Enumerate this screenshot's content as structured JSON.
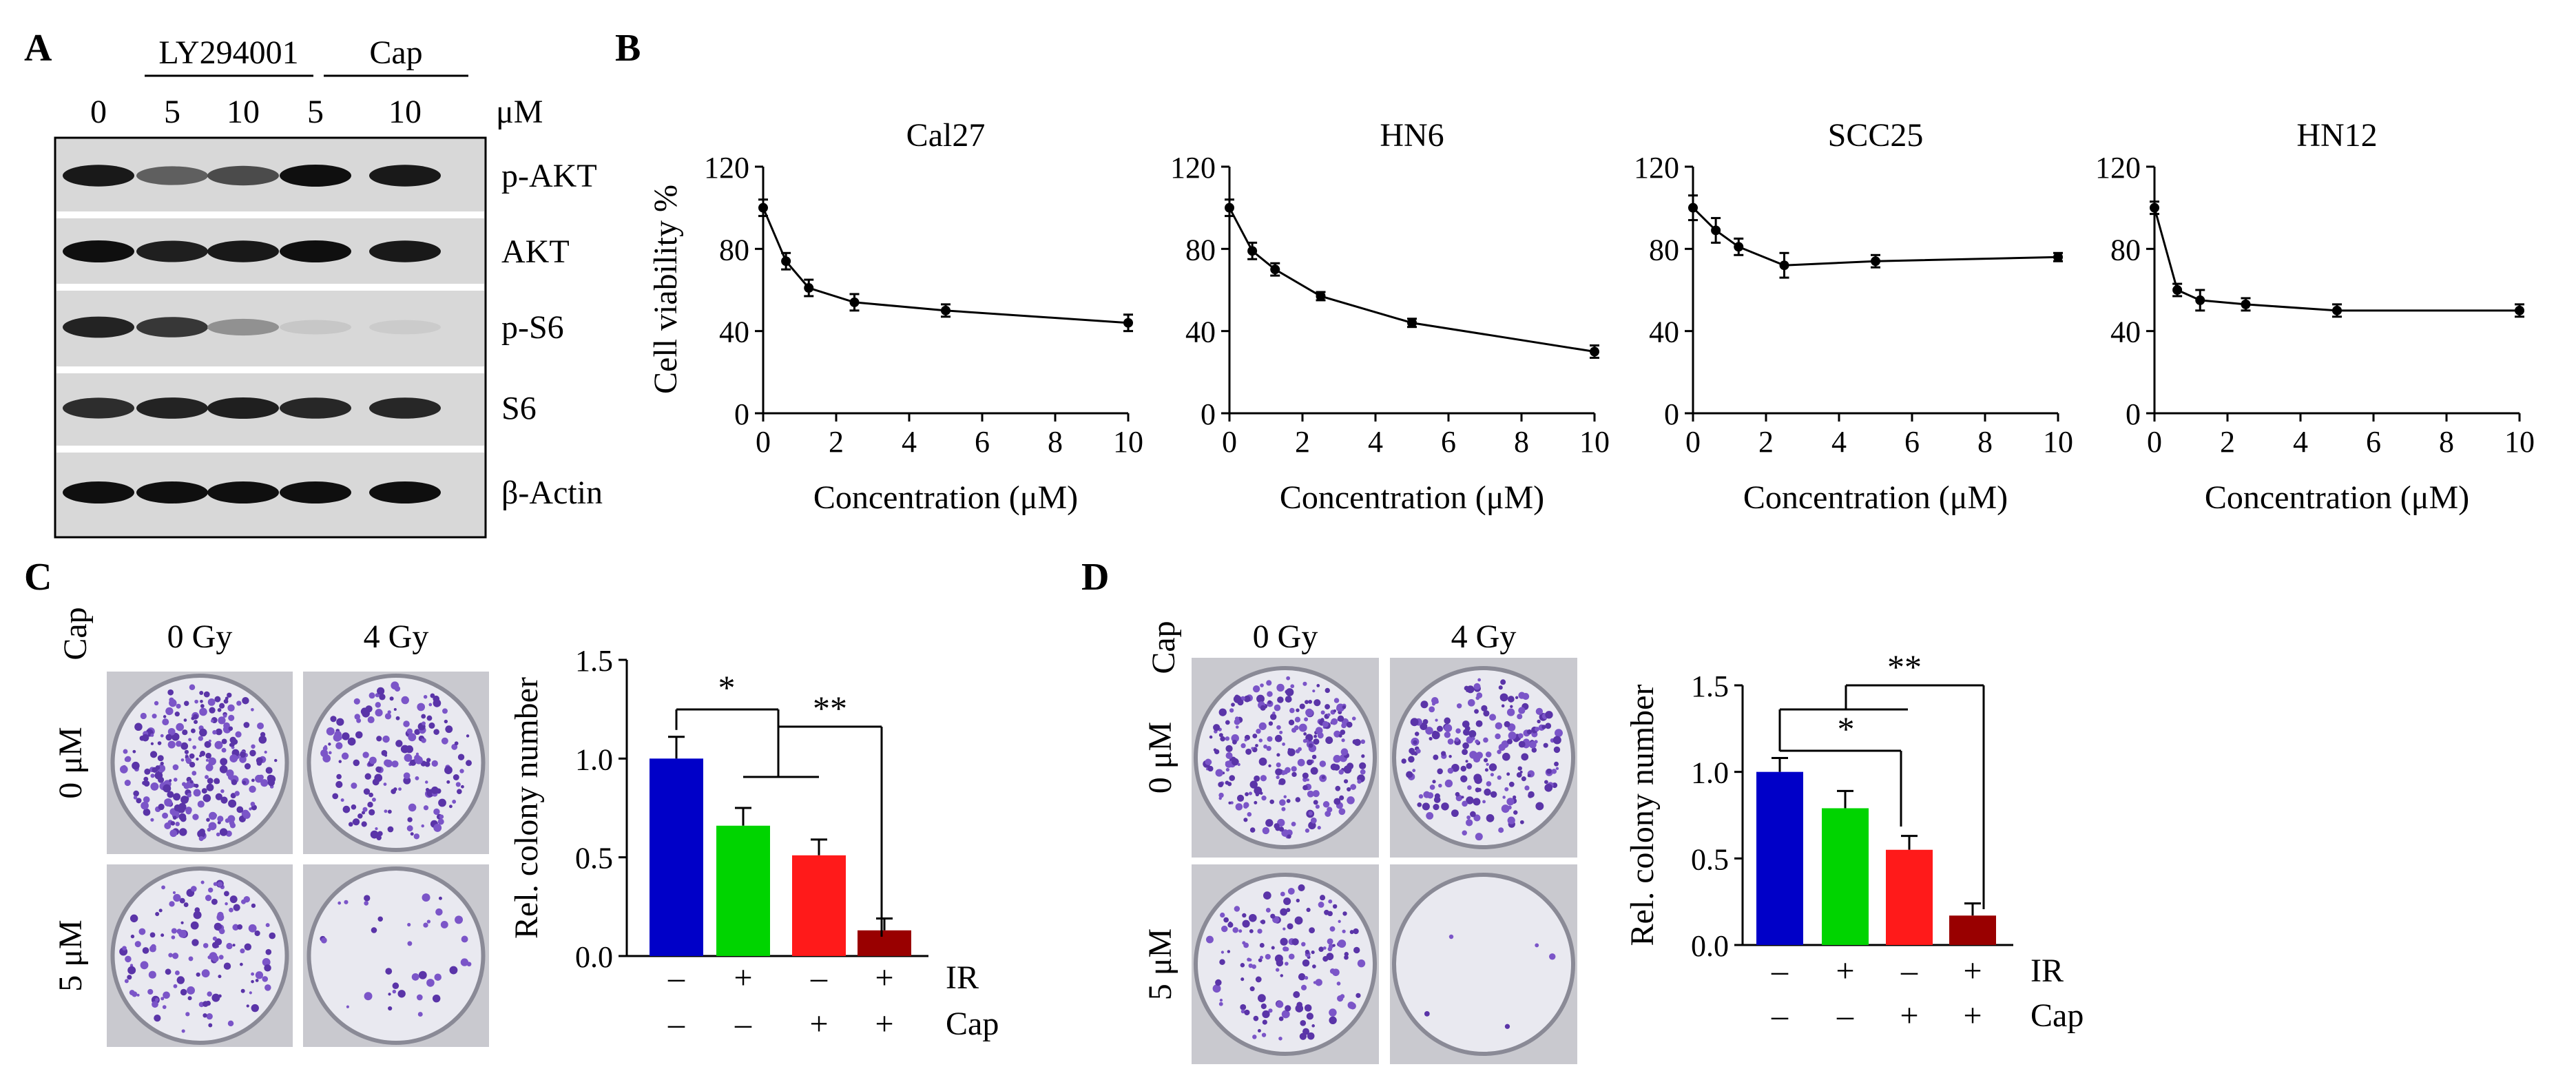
{
  "panel_labels": {
    "a": "A",
    "b": "B",
    "c": "C",
    "d": "D"
  },
  "panel_a": {
    "group_ly": "LY294001",
    "group_cap": "Cap",
    "unit": "μM",
    "lanes": [
      "0",
      "5",
      "10",
      "5",
      "10"
    ],
    "blots": [
      "p-AKT",
      "AKT",
      "p-S6",
      "S6",
      "β-Actin"
    ],
    "band_intensity": [
      [
        0.95,
        0.6,
        0.7,
        1.0,
        0.95
      ],
      [
        1.0,
        0.92,
        0.95,
        1.0,
        0.95
      ],
      [
        0.9,
        0.8,
        0.35,
        0.08,
        0.06
      ],
      [
        0.85,
        0.9,
        0.92,
        0.88,
        0.88
      ],
      [
        1.0,
        1.0,
        1.0,
        1.0,
        1.0
      ]
    ]
  },
  "panel_c_images": {
    "cap_label": "Cap",
    "columns": [
      "0 Gy",
      "4 Gy"
    ],
    "rows": [
      "0 μM",
      "5 μM"
    ],
    "colony_density": [
      [
        1.0,
        0.65
      ],
      [
        0.5,
        0.14
      ]
    ]
  },
  "panel_d_images": {
    "cap_label": "Cap",
    "columns": [
      "0 Gy",
      "4 Gy"
    ],
    "rows": [
      "0 μM",
      "5 μM"
    ],
    "colony_density": [
      [
        1.0,
        0.8
      ],
      [
        0.55,
        0.02
      ]
    ]
  },
  "chart_data": [
    {
      "type": "line",
      "panel": "B",
      "title": "Cal27",
      "xlabel": "Concentration (μM)",
      "ylabel": "Cell viability %",
      "x": [
        0,
        0.625,
        1.25,
        2.5,
        5,
        10
      ],
      "y": [
        100,
        74,
        61,
        54,
        50,
        44
      ],
      "err": [
        4,
        4,
        4,
        4,
        3,
        4
      ],
      "xlim": [
        0,
        10
      ],
      "ylim": [
        0,
        120
      ],
      "xticks": [
        0,
        2,
        4,
        6,
        8,
        10
      ],
      "yticks": [
        0,
        40,
        80,
        120
      ]
    },
    {
      "type": "line",
      "panel": "B",
      "title": "HN6",
      "xlabel": "Concentration (μM)",
      "ylabel": "",
      "x": [
        0,
        0.625,
        1.25,
        2.5,
        5,
        10
      ],
      "y": [
        100,
        79,
        70,
        57,
        44,
        30
      ],
      "err": [
        4,
        4,
        3,
        2,
        2,
        3
      ],
      "xlim": [
        0,
        10
      ],
      "ylim": [
        0,
        120
      ],
      "xticks": [
        0,
        2,
        4,
        6,
        8,
        10
      ],
      "yticks": [
        0,
        40,
        80,
        120
      ]
    },
    {
      "type": "line",
      "panel": "B",
      "title": "SCC25",
      "xlabel": "Concentration (μM)",
      "ylabel": "",
      "x": [
        0,
        0.625,
        1.25,
        2.5,
        5,
        10
      ],
      "y": [
        100,
        89,
        81,
        72,
        74,
        76
      ],
      "err": [
        6,
        6,
        4,
        6,
        3,
        2
      ],
      "xlim": [
        0,
        10
      ],
      "ylim": [
        0,
        120
      ],
      "xticks": [
        0,
        2,
        4,
        6,
        8,
        10
      ],
      "yticks": [
        0,
        40,
        80,
        120
      ]
    },
    {
      "type": "line",
      "panel": "B",
      "title": "HN12",
      "xlabel": "Concentration (μM)",
      "ylabel": "",
      "x": [
        0,
        0.625,
        1.25,
        2.5,
        5,
        10
      ],
      "y": [
        100,
        60,
        55,
        53,
        50,
        50
      ],
      "err": [
        3,
        3,
        5,
        3,
        3,
        3
      ],
      "xlim": [
        0,
        10
      ],
      "ylim": [
        0,
        120
      ],
      "xticks": [
        0,
        2,
        4,
        6,
        8,
        10
      ],
      "yticks": [
        0,
        40,
        80,
        120
      ]
    },
    {
      "type": "bar",
      "panel": "C",
      "ylabel": "Rel. colony number",
      "ylim": [
        0,
        1.5
      ],
      "yticks": [
        "0.0",
        "0.5",
        "1.0",
        "1.5"
      ],
      "values": [
        1.0,
        0.66,
        0.51,
        0.13
      ],
      "err": [
        0.11,
        0.09,
        0.08,
        0.06
      ],
      "colors": [
        "#0000c8",
        "#00d400",
        "#ff1a1a",
        "#990000"
      ],
      "ir_row": [
        "–",
        "+",
        "–",
        "+"
      ],
      "cap_row": [
        "–",
        "–",
        "+",
        "+"
      ],
      "row_labels": [
        "IR",
        "Cap"
      ],
      "sig": [
        "*",
        "**"
      ]
    },
    {
      "type": "bar",
      "panel": "D",
      "ylabel": "Rel. colony number",
      "ylim": [
        0,
        1.5
      ],
      "yticks": [
        "0.0",
        "0.5",
        "1.0",
        "1.5"
      ],
      "values": [
        1.0,
        0.79,
        0.55,
        0.17
      ],
      "err": [
        0.08,
        0.1,
        0.08,
        0.07
      ],
      "colors": [
        "#0000c8",
        "#00d400",
        "#ff1a1a",
        "#990000"
      ],
      "ir_row": [
        "–",
        "+",
        "–",
        "+"
      ],
      "cap_row": [
        "–",
        "–",
        "+",
        "+"
      ],
      "row_labels": [
        "IR",
        "Cap"
      ],
      "sig": [
        "*",
        "**"
      ]
    }
  ]
}
